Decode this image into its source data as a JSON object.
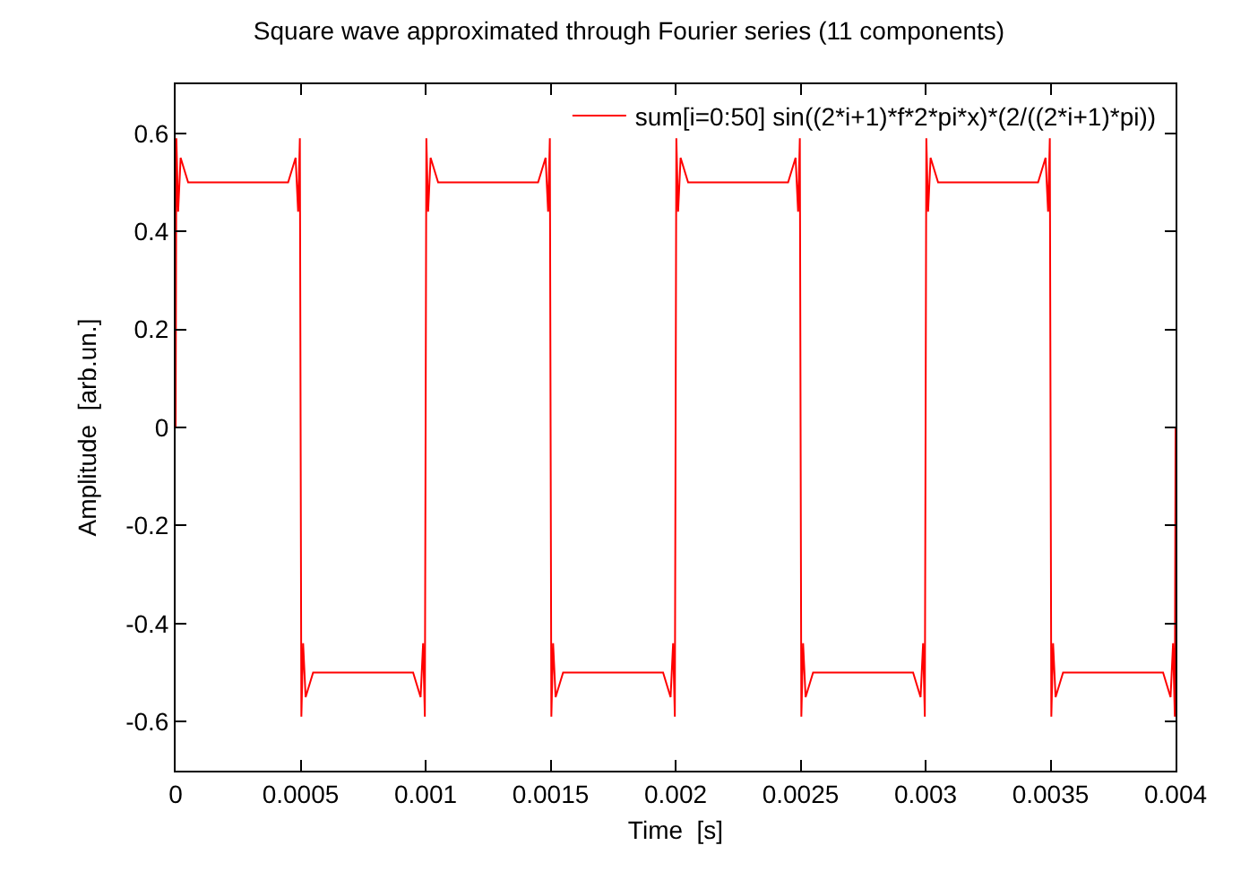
{
  "chart_data": {
    "type": "line",
    "title": "Square wave approximated through Fourier series (11 components)",
    "xlabel": "Time  [s]",
    "ylabel": "Amplitude  [arb.un.]",
    "xlim": [
      0,
      0.004
    ],
    "xticks": [
      0,
      0.0005,
      0.001,
      0.0015,
      0.002,
      0.0025,
      0.003,
      0.0035,
      0.004
    ],
    "ylim": [
      -0.7,
      0.7
    ],
    "yticks": [
      -0.6,
      -0.4,
      -0.2,
      0,
      0.2,
      0.4,
      0.6
    ],
    "grid": false,
    "legend": "top right",
    "marker": "none",
    "line_style": "solid",
    "series": [
      {
        "name": "sum[i=0:50] sin((2*i+1)*f*2*pi*x)*(2/((2*i+1)*pi))",
        "color": "#ff0000",
        "x": [
          0,
          3e-06,
          1e-05,
          2e-05,
          5e-05,
          0.00045,
          0.00048,
          0.00049,
          0.000497,
          0.0005,
          0.000503,
          0.00051,
          0.00052,
          0.00055,
          0.00095,
          0.00098,
          0.00099,
          0.000997,
          0.001,
          0.001003,
          0.00101,
          0.00102,
          0.00105,
          0.00145,
          0.00148,
          0.00149,
          0.001497,
          0.0015,
          0.001503,
          0.00151,
          0.00152,
          0.00155,
          0.00195,
          0.00198,
          0.00199,
          0.001997,
          0.002,
          0.002003,
          0.00201,
          0.00202,
          0.00205,
          0.00245,
          0.00248,
          0.00249,
          0.002497,
          0.0025,
          0.002503,
          0.00251,
          0.00252,
          0.00255,
          0.00295,
          0.00298,
          0.00299,
          0.002997,
          0.003,
          0.003003,
          0.00301,
          0.00302,
          0.00305,
          0.00345,
          0.00348,
          0.00349,
          0.003497,
          0.0035,
          0.003503,
          0.00351,
          0.00352,
          0.00355,
          0.00395,
          0.00398,
          0.00399,
          0.003997,
          0.004
        ],
        "values": [
          0,
          0.59,
          0.44,
          0.55,
          0.5,
          0.5,
          0.55,
          0.44,
          0.59,
          0,
          -0.59,
          -0.44,
          -0.55,
          -0.5,
          -0.5,
          -0.55,
          -0.44,
          -0.59,
          0,
          0.59,
          0.44,
          0.55,
          0.5,
          0.5,
          0.55,
          0.44,
          0.59,
          0,
          -0.59,
          -0.44,
          -0.55,
          -0.5,
          -0.5,
          -0.55,
          -0.44,
          -0.59,
          0,
          0.59,
          0.44,
          0.55,
          0.5,
          0.5,
          0.55,
          0.44,
          0.59,
          0,
          -0.59,
          -0.44,
          -0.55,
          -0.5,
          -0.5,
          -0.55,
          -0.44,
          -0.59,
          0,
          0.59,
          0.44,
          0.55,
          0.5,
          0.5,
          0.55,
          0.44,
          0.59,
          0,
          -0.59,
          -0.44,
          -0.55,
          -0.5,
          -0.5,
          -0.55,
          -0.44,
          -0.59,
          0
        ]
      }
    ]
  }
}
